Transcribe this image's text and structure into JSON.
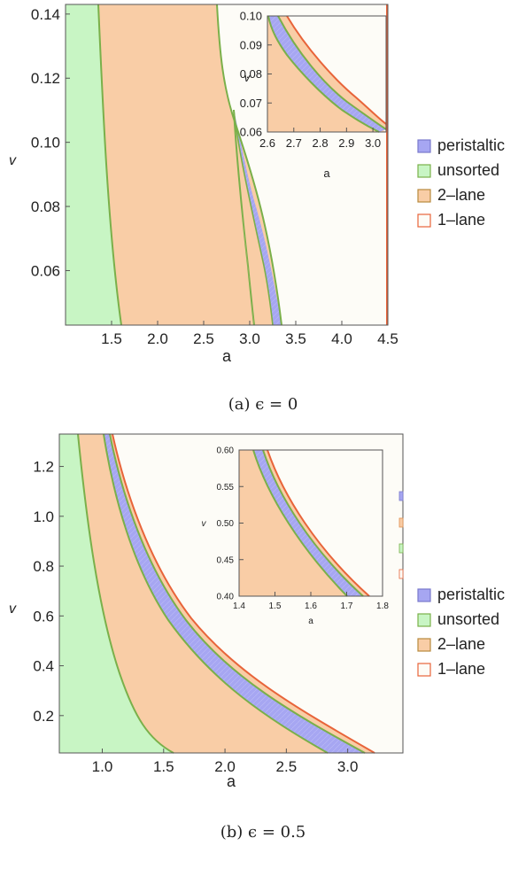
{
  "colors": {
    "peristaltic": "#a6a6f2",
    "unsorted": "#c8f5c4",
    "two_lane": "#f9cda6",
    "one_lane": "#fdfcf7",
    "boundary_green": "#7ab04a",
    "boundary_orange": "#e8643a"
  },
  "chart_data": [
    {
      "type": "area",
      "caption": "(a)  ϵ = 0",
      "xlabel": "a",
      "ylabel": "v",
      "xlim": [
        1.0,
        4.5
      ],
      "ylim": [
        0.043,
        0.143
      ],
      "xticks": [
        "1.5",
        "2.0",
        "2.5",
        "3.0",
        "3.5",
        "4.0",
        "4.5"
      ],
      "yticks": [
        "0.06",
        "0.08",
        "0.10",
        "0.12",
        "0.14"
      ],
      "legend_position": "right",
      "series": [
        {
          "name": "peristaltic",
          "color": "#a6a6f2"
        },
        {
          "name": "unsorted",
          "color": "#c8f5c4"
        },
        {
          "name": "2–lane",
          "color": "#f9cda6"
        },
        {
          "name": "1–lane",
          "color": "#fdfcf7"
        }
      ],
      "boundaries": {
        "unsorted_edge": [
          [
            1.36,
            0.143
          ],
          [
            1.42,
            0.1
          ],
          [
            1.5,
            0.07
          ],
          [
            1.59,
            0.043
          ]
        ],
        "two_lane_left": [
          [
            2.58,
            0.1085
          ],
          [
            2.64,
            0.09
          ],
          [
            2.73,
            0.08
          ],
          [
            2.87,
            0.065
          ],
          [
            3.03,
            0.05
          ],
          [
            3.12,
            0.043
          ]
        ],
        "two_lane_right": [
          [
            2.4,
            0.143
          ],
          [
            2.47,
            0.13
          ],
          [
            2.55,
            0.11
          ],
          [
            2.62,
            0.1
          ],
          [
            2.75,
            0.08
          ],
          [
            2.9,
            0.065
          ],
          [
            3.05,
            0.055
          ],
          [
            3.22,
            0.047
          ],
          [
            3.31,
            0.043
          ]
        ],
        "two_lane_lower": [
          [
            2.58,
            0.1085
          ],
          [
            2.64,
            0.09
          ],
          [
            2.73,
            0.08
          ],
          [
            2.82,
            0.068
          ],
          [
            2.92,
            0.055
          ],
          [
            2.98,
            0.043
          ]
        ],
        "peristaltic_right": [
          [
            2.58,
            0.1085
          ],
          [
            2.62,
            0.1
          ],
          [
            2.75,
            0.08
          ],
          [
            2.9,
            0.065
          ],
          [
            3.05,
            0.055
          ],
          [
            3.22,
            0.047
          ],
          [
            3.31,
            0.043
          ]
        ],
        "one_lane_right": [
          [
            4.5,
            0.143
          ],
          [
            4.5,
            0.043
          ]
        ]
      },
      "inset": {
        "xlim": [
          2.6,
          3.05
        ],
        "ylim": [
          0.06,
          0.1
        ],
        "xticks": [
          "2.6",
          "2.7",
          "2.8",
          "2.9",
          "3.0"
        ],
        "yticks": [
          "0.06",
          "0.07",
          "0.08",
          "0.09",
          "0.10"
        ],
        "xlabel": "a",
        "ylabel": "v",
        "peristaltic_left": [
          [
            2.62,
            0.1
          ],
          [
            2.7,
            0.09
          ],
          [
            2.8,
            0.08
          ],
          [
            2.9,
            0.07
          ],
          [
            3.0,
            0.063
          ],
          [
            3.05,
            0.06
          ]
        ],
        "peristaltic_right": [
          [
            2.63,
            0.1
          ],
          [
            2.75,
            0.088
          ],
          [
            2.85,
            0.077
          ],
          [
            2.95,
            0.068
          ],
          [
            3.05,
            0.061
          ]
        ],
        "orange_left": [
          [
            2.66,
            0.1
          ],
          [
            2.8,
            0.085
          ],
          [
            2.95,
            0.071
          ],
          [
            3.05,
            0.062
          ]
        ],
        "one_lane": [
          [
            2.73,
            0.1
          ],
          [
            2.85,
            0.088
          ],
          [
            2.97,
            0.075
          ],
          [
            3.05,
            0.066
          ]
        ]
      }
    },
    {
      "type": "area",
      "caption": "(b)  ϵ = 0.5",
      "xlabel": "a",
      "ylabel": "v",
      "xlim": [
        0.65,
        3.45
      ],
      "ylim": [
        0.05,
        1.33
      ],
      "xticks": [
        "1.0",
        "1.5",
        "2.0",
        "2.5",
        "3.0"
      ],
      "yticks": [
        "0.2",
        "0.4",
        "0.6",
        "0.8",
        "1.0",
        "1.2"
      ],
      "legend_position": "right",
      "series": [
        {
          "name": "peristaltic",
          "color": "#a6a6f2"
        },
        {
          "name": "unsorted",
          "color": "#c8f5c4"
        },
        {
          "name": "2–lane",
          "color": "#f9cda6"
        },
        {
          "name": "1–lane",
          "color": "#fdfcf7"
        }
      ],
      "inset": {
        "xlim": [
          1.4,
          1.8
        ],
        "ylim": [
          0.4,
          0.6
        ],
        "xticks": [
          "1.4",
          "1.5",
          "1.6",
          "1.7",
          "1.8"
        ],
        "yticks": [
          "0.40",
          "0.45",
          "0.50",
          "0.55",
          "0.60"
        ],
        "xlabel": "a",
        "ylabel": "v"
      }
    }
  ]
}
